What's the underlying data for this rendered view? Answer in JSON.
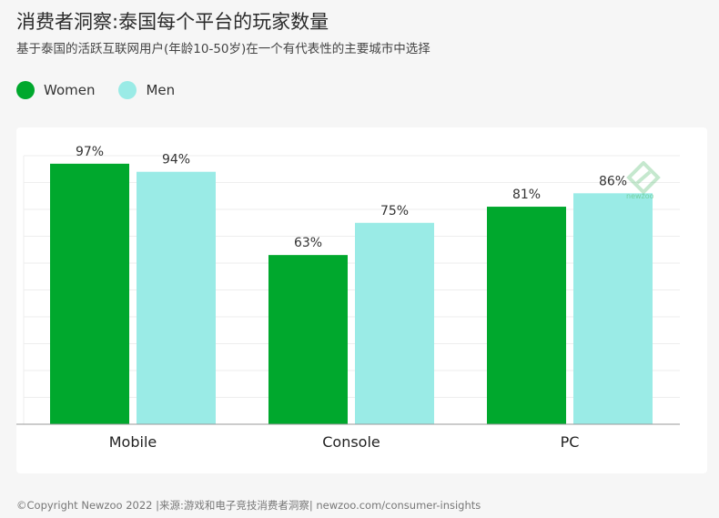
{
  "title": "消费者洞察:泰国每个平台的玩家数量",
  "subtitle": "基于泰国的活跃互联网用户(年龄10-50岁)在一个有代表性的主要城市中选择",
  "legend": [
    {
      "label": "Women",
      "color": "#00a82d"
    },
    {
      "label": "Men",
      "color": "#9aebe6"
    }
  ],
  "footer": "©Copyright Newzoo 2022 |来源:游戏和电子竞技消费者洞察| newzoo.com/consumer-insights",
  "watermark": {
    "text": "newzoo",
    "icon": "newzoo-logo-icon"
  },
  "chart_data": {
    "type": "bar",
    "title": "消费者洞察:泰国每个平台的玩家数量",
    "subtitle": "基于泰国的活跃互联网用户(年龄10-50岁)在一个有代表性的主要城市中选择",
    "categories": [
      "Mobile",
      "Console",
      "PC"
    ],
    "series": [
      {
        "name": "Women",
        "values": [
          97,
          63,
          81
        ],
        "labels": [
          "97%",
          "63%",
          "81%"
        ],
        "color": "#00a82d"
      },
      {
        "name": "Men",
        "values": [
          94,
          75,
          86
        ],
        "labels": [
          "94%",
          "75%",
          "86%"
        ],
        "color": "#9aebe6"
      }
    ],
    "xlabel": "",
    "ylabel": "",
    "ylim": [
      0,
      100
    ],
    "grid": true,
    "legend_position": "top-left"
  }
}
